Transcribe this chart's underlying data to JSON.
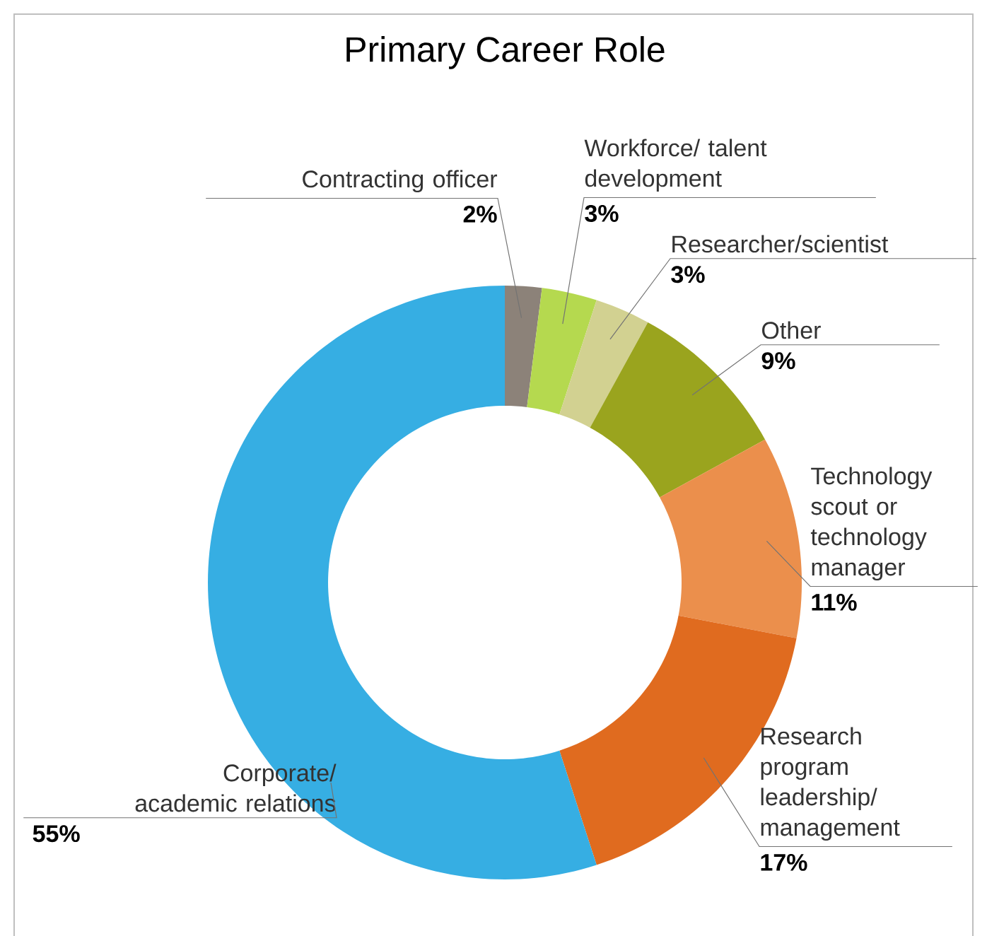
{
  "chart_data": {
    "type": "donut",
    "title": "Primary Career Role",
    "categories": [
      "Contracting officer",
      "Workforce/ talent development",
      "Researcher/scientist",
      "Other",
      "Technology scout or technology manager",
      "Research program leadership/ management",
      "Corporate/ academic relations"
    ],
    "values": [
      2,
      3,
      3,
      9,
      11,
      17,
      55
    ],
    "value_labels": [
      "2%",
      "3%",
      "3%",
      "9%",
      "11%",
      "17%",
      "55%"
    ],
    "colors": [
      "#8c8279",
      "#b5d94f",
      "#d2d191",
      "#9aa41e",
      "#eb8f4c",
      "#e06b1f",
      "#36aee3"
    ]
  }
}
